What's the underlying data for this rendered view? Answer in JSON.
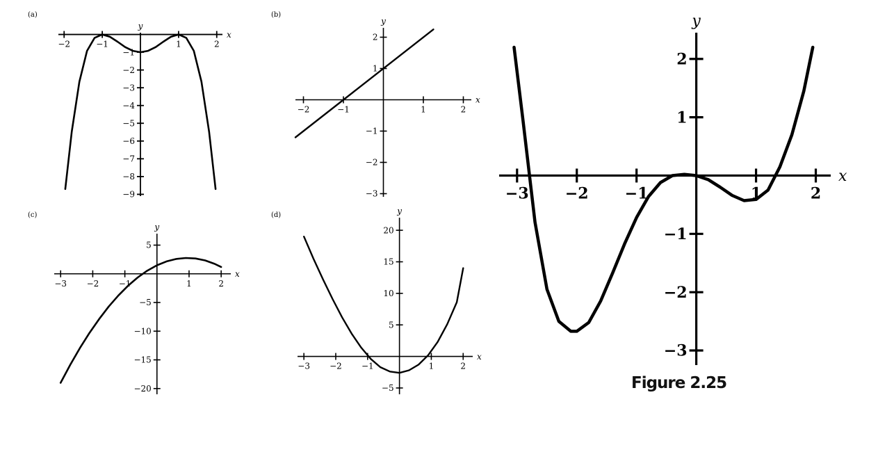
{
  "figure_caption": "Figure 2.25",
  "colors": {
    "curve": "#000000",
    "axis": "#000000",
    "background": "#ffffff"
  },
  "chart_data": [
    {
      "panel": "(a)",
      "type": "line",
      "xlabel": "x",
      "ylabel": "y",
      "xlim": [
        -2.15,
        2.15
      ],
      "ylim": [
        -9.1,
        0.1
      ],
      "xticks": [
        -2,
        -1,
        1,
        2
      ],
      "xtick_labels": [
        "−2",
        "−1",
        "1",
        "2"
      ],
      "yticks": [
        -1,
        -2,
        -3,
        -4,
        -5,
        -6,
        -7,
        -8,
        -9
      ],
      "ytick_labels": [
        "−1",
        "−2",
        "−3",
        "−4",
        "−5",
        "−6",
        "−7",
        "−8",
        "−9"
      ],
      "x": [
        -1.97,
        -1.8,
        -1.6,
        -1.4,
        -1.2,
        -1.0,
        -0.8,
        -0.6,
        -0.4,
        -0.2,
        0.0,
        0.2,
        0.4,
        0.6,
        0.8,
        1.0,
        1.2,
        1.4,
        1.6,
        1.8,
        1.97
      ],
      "y": [
        -8.7,
        -5.48,
        -2.66,
        -0.92,
        -0.19,
        0.0,
        -0.13,
        -0.41,
        -0.71,
        -0.92,
        -1.0,
        -0.92,
        -0.71,
        -0.41,
        -0.13,
        0.0,
        -0.19,
        -0.92,
        -2.66,
        -5.48,
        -8.7
      ]
    },
    {
      "panel": "(b)",
      "type": "line",
      "xlabel": "x",
      "ylabel": "y",
      "xlim": [
        -2.2,
        2.2
      ],
      "ylim": [
        -3.1,
        2.3
      ],
      "xticks": [
        -2,
        -1,
        1,
        2
      ],
      "xtick_labels": [
        "−2",
        "−1",
        "1",
        "2"
      ],
      "yticks": [
        2,
        1,
        -1,
        -2,
        -3
      ],
      "ytick_labels": [
        "2",
        "1",
        "−1",
        "−2",
        "−3"
      ],
      "x": [
        -2.2,
        1.25
      ],
      "y": [
        -1.2,
        2.25
      ]
    },
    {
      "panel": "(c)",
      "type": "line",
      "xlabel": "x",
      "ylabel": "y",
      "xlim": [
        -3.2,
        2.3
      ],
      "ylim": [
        -21,
        7
      ],
      "xticks": [
        -3,
        -2,
        -1,
        1,
        2
      ],
      "xtick_labels": [
        "−3",
        "−2",
        "−1",
        "1",
        "2"
      ],
      "yticks": [
        5,
        -5,
        -10,
        -15,
        -20
      ],
      "ytick_labels": [
        "5",
        "−5",
        "−10",
        "−15",
        "−20"
      ],
      "x": [
        -3.0,
        -2.7,
        -2.4,
        -2.1,
        -1.8,
        -1.5,
        -1.2,
        -0.9,
        -0.6,
        -0.3,
        0.0,
        0.3,
        0.6,
        0.9,
        1.2,
        1.5,
        1.8,
        2.0
      ],
      "y": [
        -19.0,
        -15.85,
        -12.95,
        -10.29,
        -7.87,
        -5.69,
        -3.76,
        -2.08,
        -0.64,
        0.55,
        1.48,
        2.16,
        2.59,
        2.76,
        2.67,
        2.33,
        1.73,
        1.2
      ]
    },
    {
      "panel": "(d)",
      "type": "line",
      "xlabel": "x",
      "ylabel": "y",
      "xlim": [
        -3.2,
        2.3
      ],
      "ylim": [
        -6,
        22
      ],
      "xticks": [
        -3,
        -2,
        -1,
        1,
        2
      ],
      "xtick_labels": [
        "−3",
        "−2",
        "−1",
        "1",
        "2"
      ],
      "yticks": [
        20,
        15,
        10,
        5,
        -5
      ],
      "ytick_labels": [
        "20",
        "15",
        "10",
        "5",
        "−5"
      ],
      "x": [
        -3.0,
        -2.7,
        -2.4,
        -2.1,
        -1.8,
        -1.5,
        -1.2,
        -0.9,
        -0.6,
        -0.3,
        0.0,
        0.3,
        0.6,
        0.9,
        1.2,
        1.5,
        1.8,
        2.0
      ],
      "y": [
        19.0,
        15.5,
        12.2,
        9.1,
        6.2,
        3.6,
        1.4,
        -0.4,
        -1.7,
        -2.4,
        -2.6,
        -2.2,
        -1.3,
        0.2,
        2.3,
        5.1,
        8.6,
        14.0
      ]
    },
    {
      "panel": "Figure 2.25",
      "type": "line",
      "xlabel": "x",
      "ylabel": "y",
      "xlim": [
        -3.3,
        2.25
      ],
      "ylim": [
        -3.25,
        2.45
      ],
      "xticks": [
        -3,
        -2,
        -1,
        1,
        2
      ],
      "xtick_labels": [
        "−3",
        "−2",
        "−1",
        "1",
        "2"
      ],
      "yticks": [
        2,
        1,
        -1,
        -2,
        -3
      ],
      "ytick_labels": [
        "2",
        "1",
        "−1",
        "−2",
        "−3"
      ],
      "x": [
        -3.05,
        -2.9,
        -2.7,
        -2.5,
        -2.3,
        -2.1,
        -2.0,
        -1.8,
        -1.6,
        -1.4,
        -1.2,
        -1.0,
        -0.8,
        -0.6,
        -0.4,
        -0.2,
        0.0,
        0.2,
        0.4,
        0.6,
        0.8,
        1.0,
        1.2,
        1.4,
        1.6,
        1.8,
        1.95
      ],
      "y": [
        2.2,
        0.94,
        -0.8,
        -1.95,
        -2.5,
        -2.67,
        -2.67,
        -2.52,
        -2.15,
        -1.67,
        -1.17,
        -0.72,
        -0.36,
        -0.12,
        0.0,
        0.02,
        0.0,
        -0.07,
        -0.2,
        -0.34,
        -0.43,
        -0.41,
        -0.25,
        0.15,
        0.7,
        1.45,
        2.2
      ]
    }
  ]
}
